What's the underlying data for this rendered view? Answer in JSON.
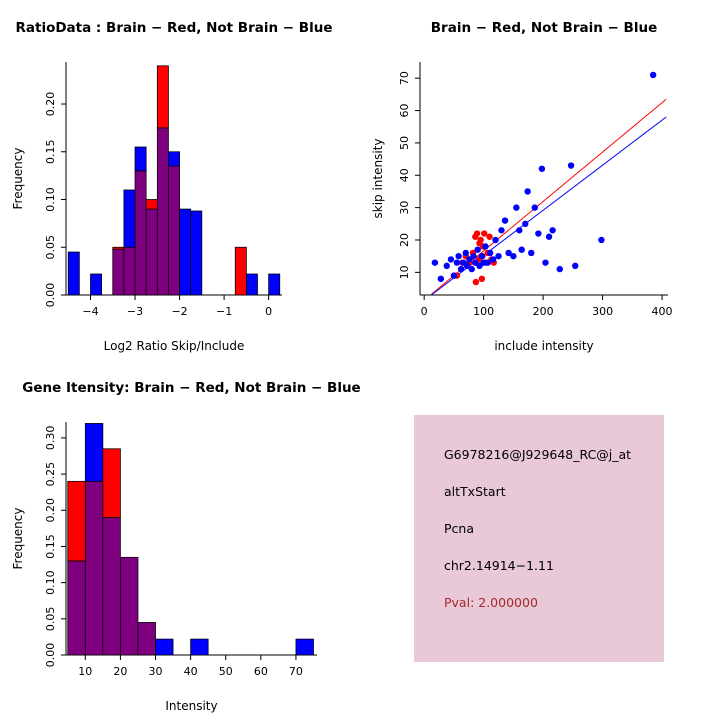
{
  "colors": {
    "brain": "#FF0000",
    "not_brain": "#0000FF",
    "overlap": "#7F007F",
    "axis": "#000000",
    "info_bg": "#E9C8D8",
    "pval_text": "#A52A2A"
  },
  "chart_data": [
    {
      "id": "ratio_hist",
      "type": "bar",
      "subtype": "overlaid-histogram",
      "title": "RatioData : Brain − Red, Not Brain − Blue",
      "xlabel": "Log2 Ratio Skip/Include",
      "ylabel": "Frequency",
      "xlim": [
        -4.55,
        0.3
      ],
      "ylim": [
        0,
        0.244
      ],
      "xticks": [
        -4,
        -3,
        -2,
        -1,
        0
      ],
      "xtick_labels": [
        "−4",
        "−3",
        "−2",
        "−1",
        "0"
      ],
      "yticks": [
        0,
        0.05,
        0.1,
        0.15,
        0.2
      ],
      "ytick_labels": [
        "0.00",
        "0.05",
        "0.10",
        "0.15",
        "0.20"
      ],
      "bin_width": 0.25,
      "bin_left_edges": [
        -4.5,
        -4.25,
        -4,
        -3.75,
        -3.5,
        -3.25,
        -3,
        -2.75,
        -2.5,
        -2.25,
        -2,
        -1.75,
        -1.5,
        -1.25,
        -1,
        -0.75,
        -0.5,
        -0.25,
        0
      ],
      "series": [
        {
          "name": "Brain (Red)",
          "color": "#FF0000",
          "values": [
            0,
            0,
            0,
            0,
            0.05,
            0.05,
            0.13,
            0.1,
            0.24,
            0.135,
            0,
            0,
            0,
            0,
            0,
            0.05,
            0,
            0,
            0
          ]
        },
        {
          "name": "Not Brain (Blue)",
          "color": "#0000FF",
          "values": [
            0.045,
            0,
            0.022,
            0,
            0.048,
            0.11,
            0.155,
            0.09,
            0.175,
            0.15,
            0.09,
            0.088,
            0,
            0,
            0,
            0,
            0.022,
            0,
            0.022
          ]
        }
      ]
    },
    {
      "id": "scatter",
      "type": "scatter",
      "title": "Brain − Red, Not Brain − Blue",
      "xlabel": "include intensity",
      "ylabel": "skip intensity",
      "xlim": [
        -7,
        410
      ],
      "ylim": [
        3,
        75
      ],
      "xticks": [
        0,
        100,
        200,
        300,
        400
      ],
      "xtick_labels": [
        "0",
        "100",
        "200",
        "300",
        "400"
      ],
      "yticks": [
        10,
        20,
        30,
        40,
        50,
        60,
        70
      ],
      "ytick_labels": [
        "10",
        "20",
        "30",
        "40",
        "50",
        "60",
        "70"
      ],
      "series": [
        {
          "name": "Brain (Red)",
          "color": "#FF0000",
          "points": [
            [
              55,
              9
            ],
            [
              64,
              13
            ],
            [
              70,
              15
            ],
            [
              76,
              13
            ],
            [
              82,
              16
            ],
            [
              86,
              21
            ],
            [
              87,
              7
            ],
            [
              89,
              22
            ],
            [
              92,
              14
            ],
            [
              93,
              19
            ],
            [
              95,
              20
            ],
            [
              97,
              8
            ],
            [
              98,
              15
            ],
            [
              99,
              18
            ],
            [
              101,
              22
            ],
            [
              104,
              13
            ],
            [
              107,
              16
            ],
            [
              110,
              21
            ],
            [
              113,
              14
            ],
            [
              117,
              13
            ]
          ]
        },
        {
          "name": "Not Brain (Blue)",
          "color": "#0000FF",
          "points": [
            [
              18,
              13
            ],
            [
              28,
              8
            ],
            [
              38,
              12
            ],
            [
              45,
              14
            ],
            [
              50,
              9
            ],
            [
              55,
              13
            ],
            [
              58,
              15
            ],
            [
              62,
              11
            ],
            [
              66,
              13
            ],
            [
              70,
              16
            ],
            [
              72,
              12
            ],
            [
              76,
              14
            ],
            [
              80,
              11
            ],
            [
              83,
              15
            ],
            [
              86,
              13
            ],
            [
              90,
              17
            ],
            [
              93,
              12
            ],
            [
              97,
              15
            ],
            [
              100,
              13
            ],
            [
              103,
              18
            ],
            [
              107,
              13
            ],
            [
              111,
              16
            ],
            [
              116,
              14
            ],
            [
              120,
              20
            ],
            [
              125,
              15
            ],
            [
              130,
              23
            ],
            [
              136,
              26
            ],
            [
              142,
              16
            ],
            [
              150,
              15
            ],
            [
              155,
              30
            ],
            [
              160,
              23
            ],
            [
              164,
              17
            ],
            [
              170,
              25
            ],
            [
              174,
              35
            ],
            [
              180,
              16
            ],
            [
              186,
              30
            ],
            [
              192,
              22
            ],
            [
              198,
              42
            ],
            [
              204,
              13
            ],
            [
              210,
              21
            ],
            [
              216,
              23
            ],
            [
              228,
              11
            ],
            [
              247,
              43
            ],
            [
              254,
              12
            ],
            [
              298,
              20
            ],
            [
              385,
              71
            ]
          ]
        }
      ],
      "fit_lines": [
        {
          "name": "Brain fit",
          "color": "#FF0000",
          "x1": 12,
          "y1": 3.2,
          "x2": 407,
          "y2": 63.5
        },
        {
          "name": "Not Brain fit",
          "color": "#0000FF",
          "x1": 12,
          "y1": 3.0,
          "x2": 407,
          "y2": 58.0
        }
      ]
    },
    {
      "id": "gene_hist",
      "type": "bar",
      "subtype": "overlaid-histogram",
      "title": "Gene Itensity: Brain − Red, Not Brain − Blue",
      "xlabel": "Intensity",
      "ylabel": "Frequency",
      "xlim": [
        4.5,
        76
      ],
      "ylim": [
        0,
        0.322
      ],
      "xticks": [
        10,
        20,
        30,
        40,
        50,
        60,
        70
      ],
      "xtick_labels": [
        "10",
        "20",
        "30",
        "40",
        "50",
        "60",
        "70"
      ],
      "yticks": [
        0,
        0.05,
        0.1,
        0.15,
        0.2,
        0.25,
        0.3
      ],
      "ytick_labels": [
        "0.00",
        "0.05",
        "0.10",
        "0.15",
        "0.20",
        "0.25",
        "0.30"
      ],
      "bin_width": 5,
      "bin_left_edges": [
        5,
        10,
        15,
        20,
        25,
        30,
        35,
        40,
        45,
        50,
        55,
        60,
        65,
        70
      ],
      "series": [
        {
          "name": "Brain (Red)",
          "color": "#FF0000",
          "values": [
            0.24,
            0.24,
            0.285,
            0.135,
            0.045,
            0,
            0,
            0,
            0,
            0,
            0,
            0,
            0,
            0
          ]
        },
        {
          "name": "Not Brain (Blue)",
          "color": "#0000FF",
          "values": [
            0.13,
            0.32,
            0.19,
            0.135,
            0.045,
            0.022,
            0,
            0.022,
            0,
            0,
            0,
            0,
            0,
            0.022
          ]
        }
      ]
    }
  ],
  "info_panel": {
    "probe_id": "G6978216@J929648_RC@j_at",
    "event_type": "altTxStart",
    "gene": "Pcna",
    "location": "chr2.14914−1.11",
    "pval": "Pval: 2.000000"
  }
}
